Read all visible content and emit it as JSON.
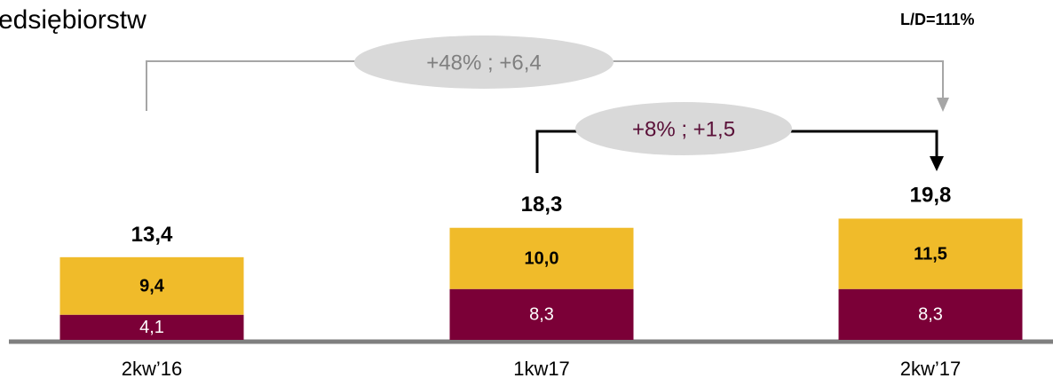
{
  "chart_data": {
    "type": "stacked_bar",
    "title": "edsiębiorstw",
    "annotations": [
      "L/D=111%",
      "+48% ; +6,4",
      "+8% ; +1,5"
    ],
    "categories": [
      "2kw’16",
      "1kw17",
      "2kw’17"
    ],
    "series": [
      {
        "color": "#7b0037",
        "values": [
          4.1,
          8.3,
          8.3
        ],
        "value_labels": [
          "4,1",
          "8,3",
          "8,3"
        ]
      },
      {
        "color": "#f0bb2a",
        "values": [
          9.4,
          10.0,
          11.5
        ],
        "value_labels": [
          "9,4",
          "10,0",
          "11,5"
        ]
      }
    ],
    "totals": [
      13.4,
      18.3,
      19.8
    ],
    "total_labels": [
      "13,4",
      "18,3",
      "19,8"
    ]
  }
}
